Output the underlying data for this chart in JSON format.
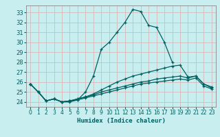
{
  "xlabel": "Humidex (Indice chaleur)",
  "bg_color": "#c8eef0",
  "grid_color": "#d8b8b8",
  "line_color": "#006060",
  "xlim": [
    -0.5,
    23.5
  ],
  "ylim": [
    23.5,
    33.7
  ],
  "xticks": [
    0,
    1,
    2,
    3,
    4,
    5,
    6,
    7,
    8,
    9,
    10,
    11,
    12,
    13,
    14,
    15,
    16,
    17,
    18,
    19,
    20,
    21,
    22,
    23
  ],
  "yticks": [
    24,
    25,
    26,
    27,
    28,
    29,
    30,
    31,
    32,
    33
  ],
  "series": [
    {
      "x": [
        0,
        1,
        2,
        3,
        4,
        5,
        6,
        7,
        8,
        9,
        10,
        11,
        12,
        13,
        14,
        15,
        16,
        17,
        18
      ],
      "y": [
        25.8,
        25.0,
        24.1,
        24.3,
        24.0,
        24.0,
        24.2,
        25.0,
        26.6,
        29.3,
        30.0,
        31.0,
        32.0,
        33.3,
        33.1,
        31.7,
        31.5,
        30.0,
        28.0
      ]
    },
    {
      "x": [
        0,
        1,
        2,
        3,
        4,
        5,
        6,
        7,
        8,
        9,
        10,
        11,
        12,
        13,
        14,
        15,
        16,
        17,
        18,
        19,
        20,
        21,
        22,
        23
      ],
      "y": [
        25.8,
        25.0,
        24.1,
        24.3,
        24.0,
        24.1,
        24.3,
        24.5,
        24.8,
        25.2,
        25.6,
        26.0,
        26.3,
        26.6,
        26.8,
        27.0,
        27.2,
        27.4,
        27.6,
        27.7,
        26.5,
        26.6,
        25.8,
        25.5
      ]
    },
    {
      "x": [
        0,
        1,
        2,
        3,
        4,
        5,
        6,
        7,
        8,
        9,
        10,
        11,
        12,
        13,
        14,
        15,
        16,
        17,
        18,
        19,
        20,
        21,
        22,
        23
      ],
      "y": [
        25.8,
        25.0,
        24.1,
        24.3,
        24.0,
        24.1,
        24.3,
        24.5,
        24.7,
        25.0,
        25.2,
        25.4,
        25.6,
        25.8,
        26.0,
        26.1,
        26.3,
        26.4,
        26.5,
        26.6,
        26.4,
        26.6,
        25.8,
        25.4
      ]
    },
    {
      "x": [
        0,
        1,
        2,
        3,
        4,
        5,
        6,
        7,
        8,
        9,
        10,
        11,
        12,
        13,
        14,
        15,
        16,
        17,
        18,
        19,
        20,
        21,
        22,
        23
      ],
      "y": [
        25.8,
        25.0,
        24.1,
        24.3,
        24.0,
        24.1,
        24.2,
        24.4,
        24.6,
        24.8,
        25.0,
        25.2,
        25.4,
        25.6,
        25.8,
        25.9,
        26.0,
        26.1,
        26.2,
        26.3,
        26.2,
        26.4,
        25.6,
        25.3
      ]
    }
  ]
}
